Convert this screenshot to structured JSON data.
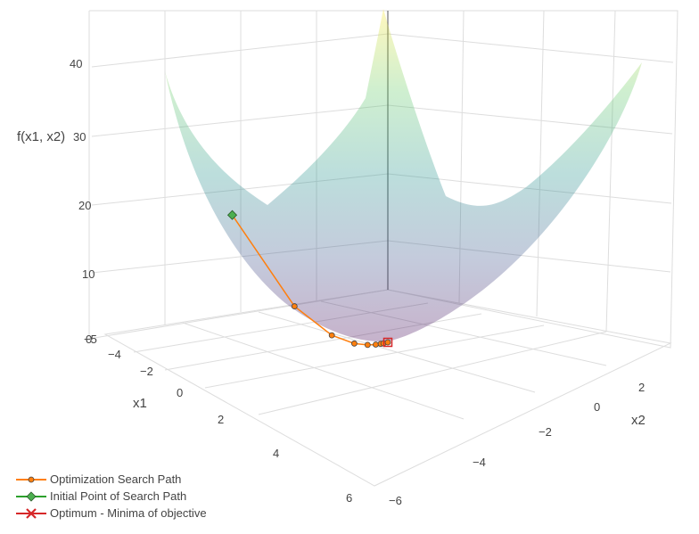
{
  "chart_data": {
    "type": "surface3d",
    "title": "",
    "axes": {
      "x1": {
        "title": "x1",
        "ticks": [
          "−4",
          "−2",
          "0",
          "2",
          "4",
          "6"
        ]
      },
      "x2": {
        "title": "x2",
        "ticks": [
          "2",
          "0",
          "−2",
          "−4",
          "−6"
        ]
      },
      "z": {
        "title": "f(x1, x2)",
        "ticks": [
          "40",
          "30",
          "20",
          "10",
          "0"
        ],
        "extra_tick": "−5"
      }
    },
    "surface": {
      "colorscale": [
        "#440154",
        "#3b528b",
        "#21918c",
        "#5ec962",
        "#fde725"
      ],
      "opacity": 0.3
    },
    "series": [
      {
        "name": "Optimization Search Path",
        "color": "#ff7f0e",
        "marker": "circle",
        "points": [
          {
            "x1": -1.0,
            "x2": -5.0,
            "z": 26.0
          },
          {
            "x1": -0.6,
            "x2": -3.0,
            "z": 9.4
          },
          {
            "x1": -0.36,
            "x2": -1.8,
            "z": 3.4
          },
          {
            "x1": -0.22,
            "x2": -1.08,
            "z": 1.2
          },
          {
            "x1": -0.13,
            "x2": -0.65,
            "z": 0.44
          },
          {
            "x1": -0.08,
            "x2": -0.39,
            "z": 0.16
          },
          {
            "x1": -0.05,
            "x2": -0.23,
            "z": 0.06
          },
          {
            "x1": -0.03,
            "x2": -0.14,
            "z": 0.02
          },
          {
            "x1": 0.0,
            "x2": 0.0,
            "z": 0.0
          }
        ]
      },
      {
        "name": "Initial Point of Search Path",
        "color": "#2ca02c",
        "marker": "diamond",
        "points": [
          {
            "x1": -1.0,
            "x2": -5.0,
            "z": 26.0
          }
        ]
      },
      {
        "name": "Optimum - Minima of objective",
        "color": "#d62728",
        "marker": "square-open",
        "points": [
          {
            "x1": 0.0,
            "x2": 0.0,
            "z": 0.0
          }
        ]
      }
    ],
    "legend_position": "bottom-left",
    "grid": true
  }
}
